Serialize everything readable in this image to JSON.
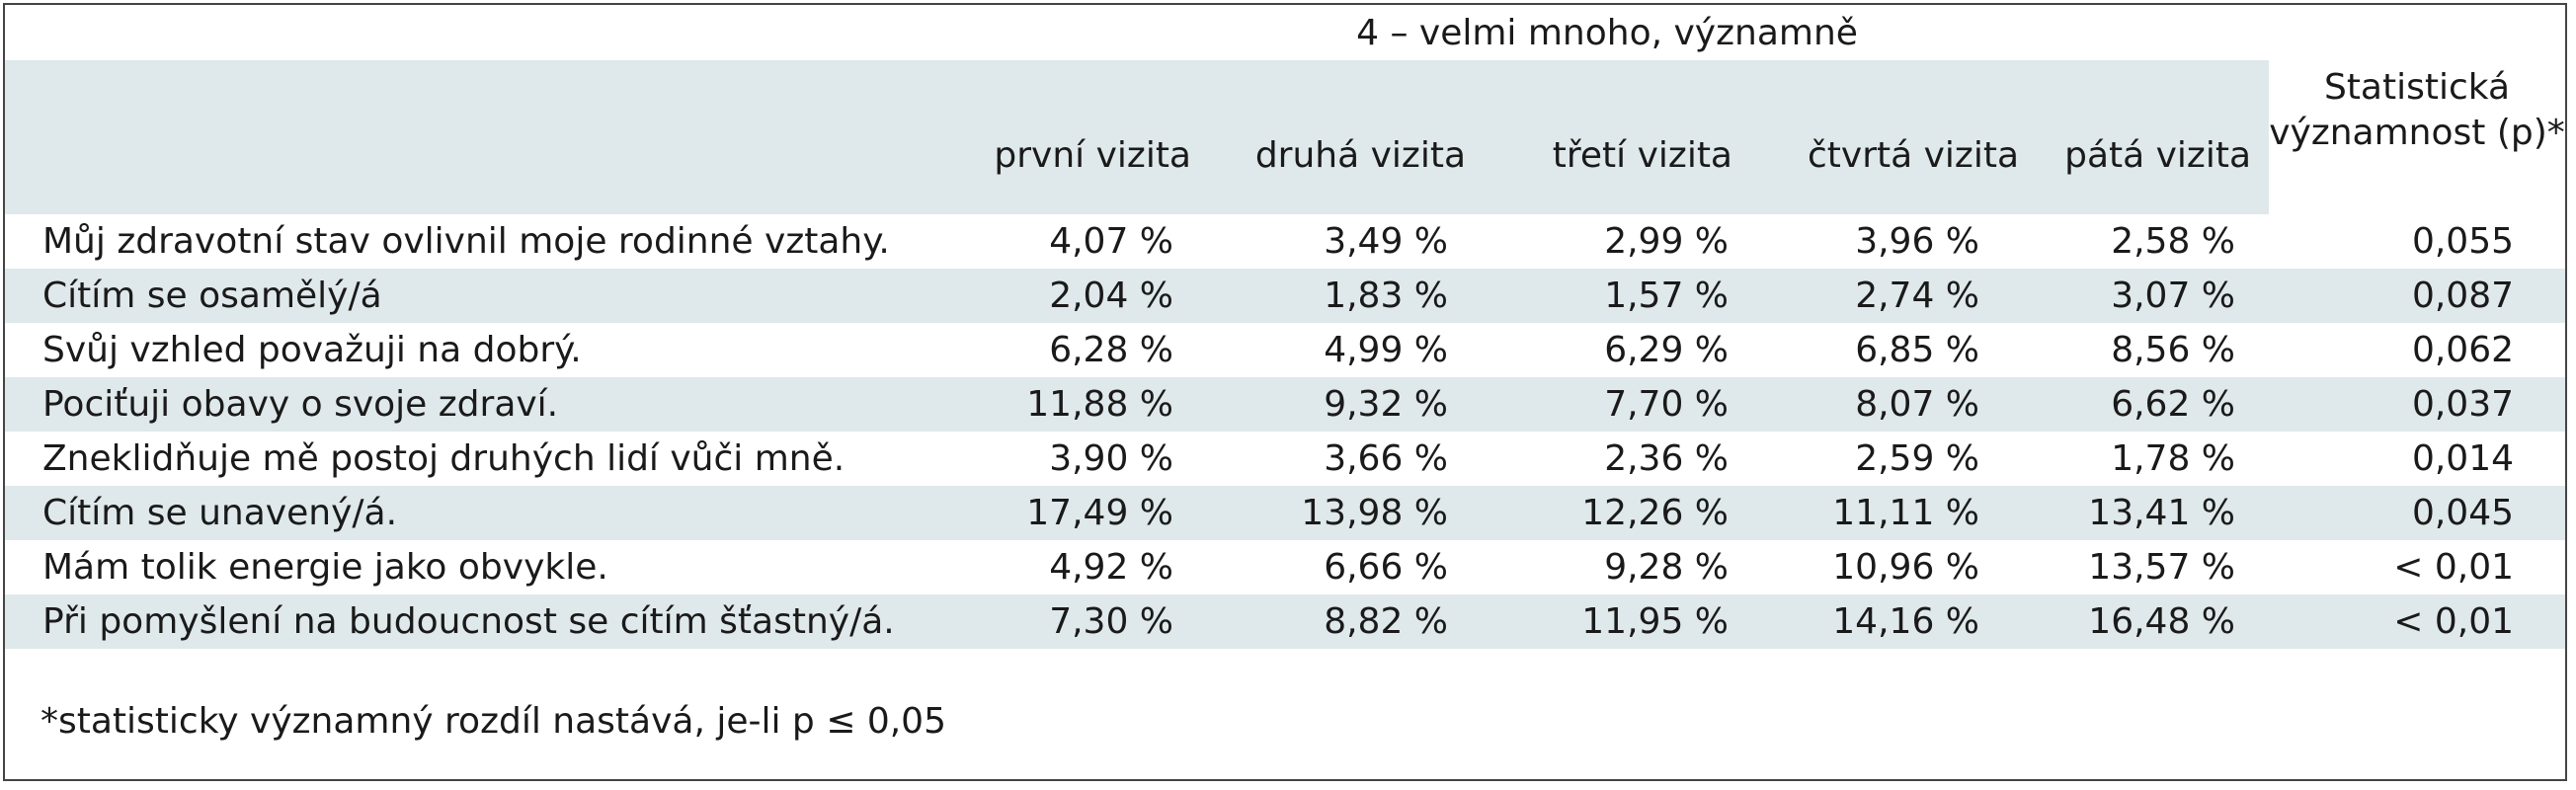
{
  "table": {
    "group_header": "4 – velmi mnoho, významně",
    "stat_header": "Statistická významnost (p)*",
    "visit_headers": [
      "první vizita",
      "druhá vizita",
      "třetí vizita",
      "čtvrtá vizita",
      "pátá vizita"
    ],
    "rows": [
      {
        "label": "Můj zdravotní stav ovlivnil moje rodinné vztahy.",
        "values": [
          "4,07 %",
          "3,49 %",
          "2,99 %",
          "3,96 %",
          "2,58 %"
        ],
        "p": "0,055"
      },
      {
        "label": "Cítím se osamělý/á",
        "values": [
          "2,04 %",
          "1,83 %",
          "1,57 %",
          "2,74 %",
          "3,07 %"
        ],
        "p": "0,087"
      },
      {
        "label": "Svůj vzhled považuji na dobrý.",
        "values": [
          "6,28 %",
          "4,99 %",
          "6,29 %",
          "6,85 %",
          "8,56 %"
        ],
        "p": "0,062"
      },
      {
        "label": "Pociťuji obavy o svoje zdraví.",
        "values": [
          "11,88 %",
          "9,32 %",
          "7,70 %",
          "8,07 %",
          "6,62 %"
        ],
        "p": "0,037"
      },
      {
        "label": "Zneklidňuje mě postoj druhých lidí vůči mně.",
        "values": [
          "3,90 %",
          "3,66 %",
          "2,36 %",
          "2,59 %",
          "1,78 %"
        ],
        "p": "0,014"
      },
      {
        "label": "Cítím se unavený/á.",
        "values": [
          "17,49 %",
          "13,98 %",
          "12,26 %",
          "11,11 %",
          "13,41 %"
        ],
        "p": "0,045"
      },
      {
        "label": "Mám tolik energie jako obvykle.",
        "values": [
          "4,92 %",
          "6,66 %",
          "9,28 %",
          "10,96 %",
          "13,57 %"
        ],
        "p": "< 0,01"
      },
      {
        "label": "Při pomyšlení na budoucnost se cítím šťastný/á.",
        "values": [
          "7,30 %",
          "8,82 %",
          "11,95 %",
          "14,16 %",
          "16,48 %"
        ],
        "p": "< 0,01"
      }
    ],
    "footnote": "*statisticky významný rozdíl nastává, je-li p ≤ 0,05"
  }
}
